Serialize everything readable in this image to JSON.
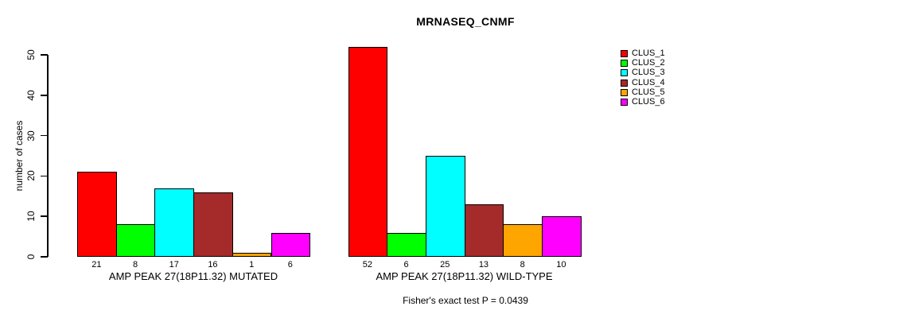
{
  "chart_data": {
    "type": "bar",
    "title": "MRNASEQ_CNMF",
    "ylabel": "number of cases",
    "xlabel": "",
    "ylim": [
      0,
      52
    ],
    "yticks": [
      0,
      10,
      20,
      30,
      40,
      50
    ],
    "grid": false,
    "legend_position": "right",
    "categories": [
      "CLUS_1",
      "CLUS_2",
      "CLUS_3",
      "CLUS_4",
      "CLUS_5",
      "CLUS_6"
    ],
    "colors": [
      "#FF0000",
      "#00FF00",
      "#00FFFF",
      "#A52A2A",
      "#FFA500",
      "#FF00FF"
    ],
    "groups": [
      {
        "label": "AMP PEAK 27(18P11.32) MUTATED",
        "values": [
          21,
          8,
          17,
          16,
          1,
          6
        ]
      },
      {
        "label": "AMP PEAK 27(18P11.32) WILD-TYPE",
        "values": [
          52,
          6,
          25,
          13,
          8,
          10
        ]
      }
    ],
    "annotation": "Fisher's exact test P = 0.0439"
  }
}
